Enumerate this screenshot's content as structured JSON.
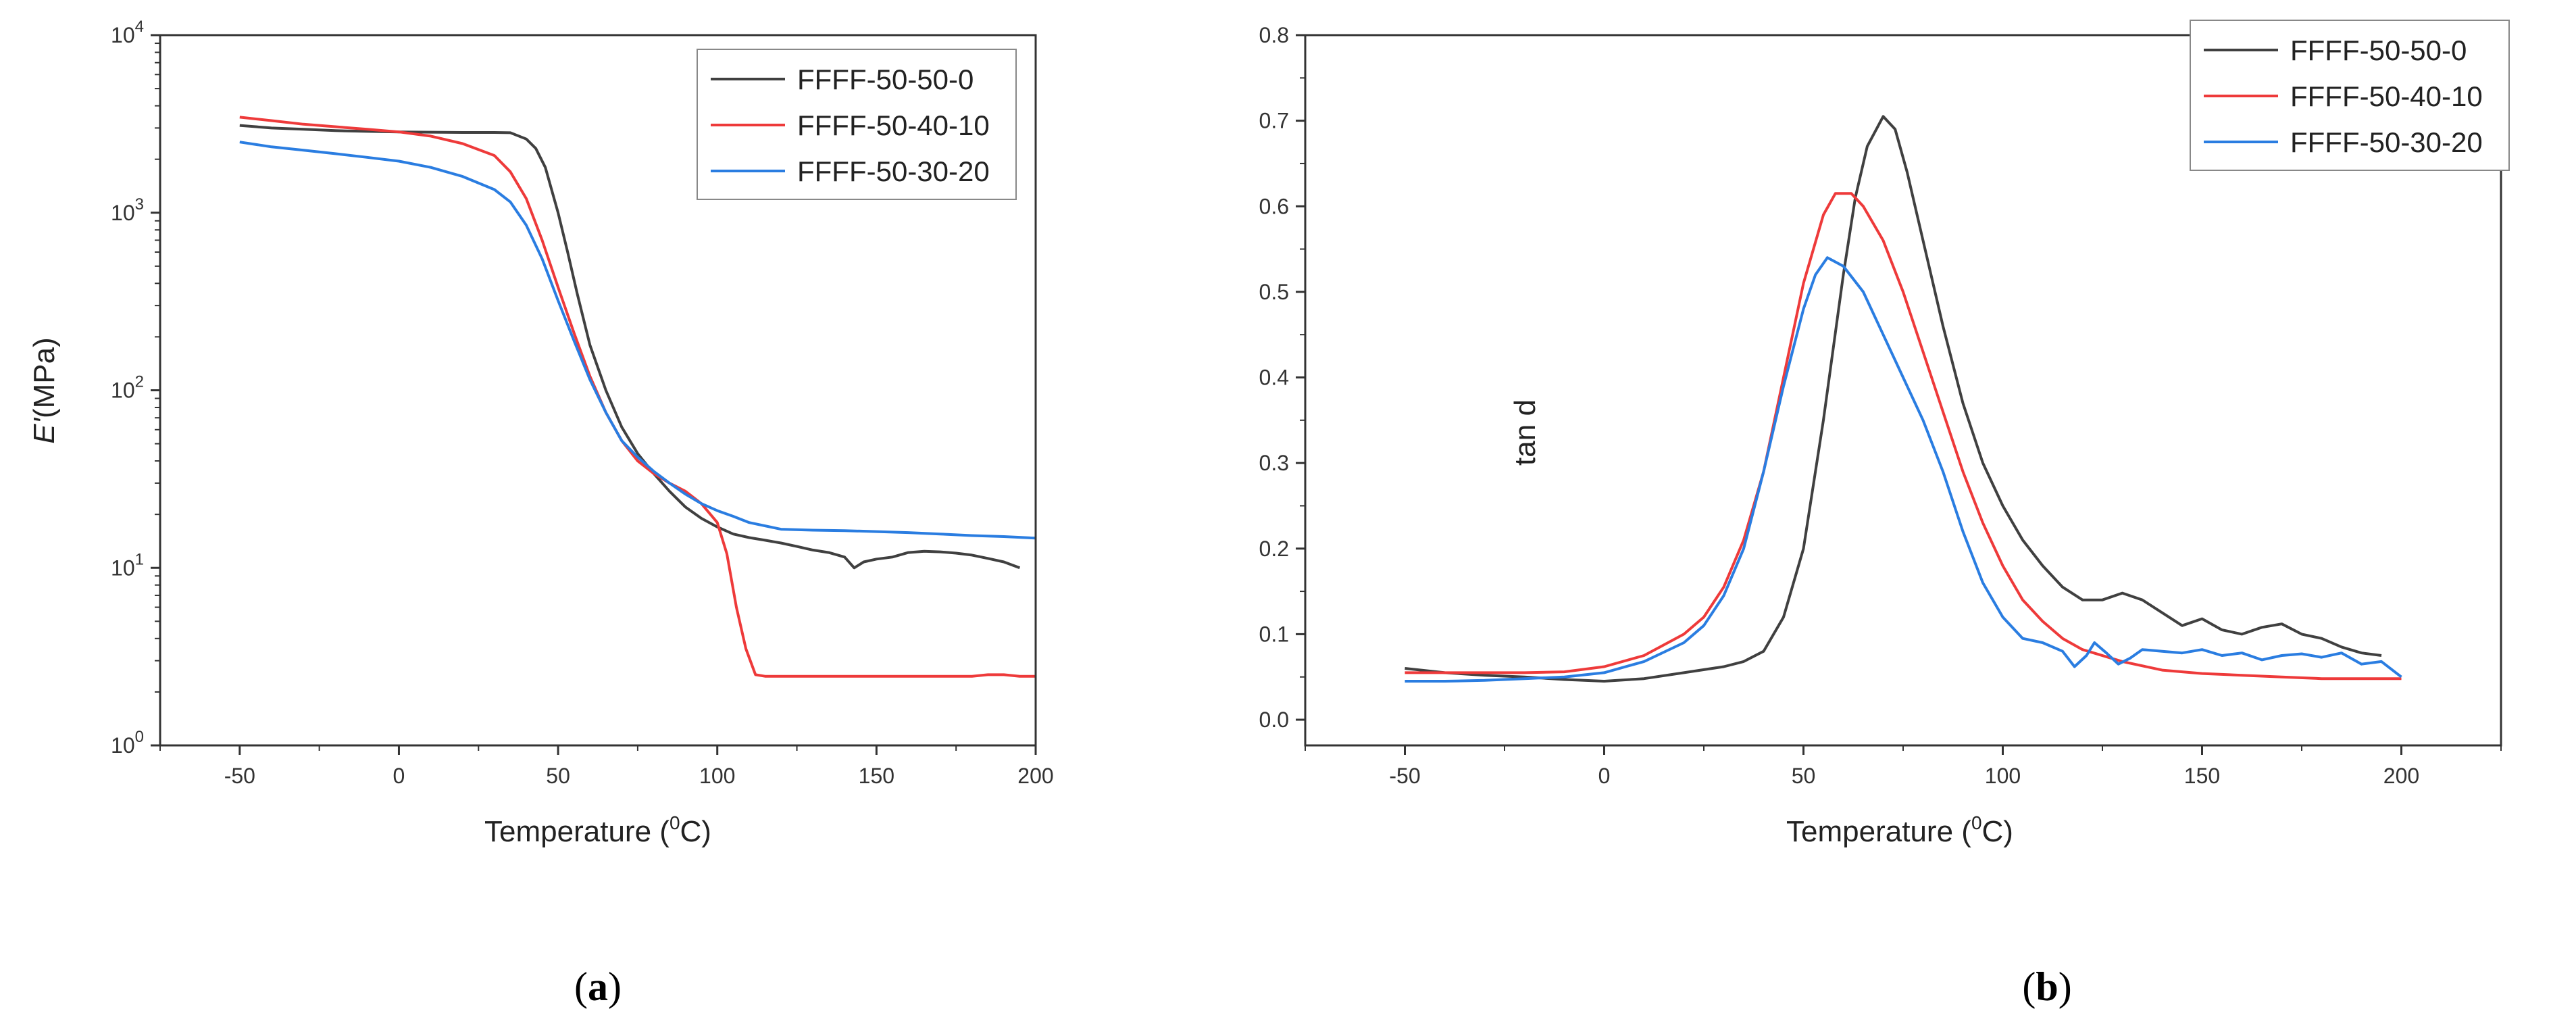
{
  "panels": [
    {
      "label_open": "(",
      "label_letter": "a",
      "label_close": ")"
    },
    {
      "label_open": "(",
      "label_letter": "b",
      "label_close": ")"
    }
  ],
  "chart_data": [
    {
      "type": "line",
      "title": "",
      "xlabel": "Temperature (0C)",
      "xlabel_parts": {
        "pre": "Temperature (",
        "sup": "0",
        "post": "C)"
      },
      "ylabel": "E'(MPa)",
      "ylabel_parts": {
        "italic": "E'",
        "rest": "(MPa)"
      },
      "yscale": "log",
      "xlim": [
        -75,
        200
      ],
      "ylim": [
        1,
        10000
      ],
      "xticks": [
        -50,
        0,
        50,
        100,
        150,
        200
      ],
      "yticks": [
        1,
        10,
        100,
        1000,
        10000
      ],
      "ytick_labels": [
        {
          "base": "10",
          "exp": "0"
        },
        {
          "base": "10",
          "exp": "1"
        },
        {
          "base": "10",
          "exp": "2"
        },
        {
          "base": "10",
          "exp": "3"
        },
        {
          "base": "10",
          "exp": "4"
        }
      ],
      "legend": "top-right",
      "grid": false,
      "series": [
        {
          "name": "FFFF-50-50-0",
          "color": "#404040",
          "x": [
            -50,
            -40,
            -30,
            -20,
            -10,
            0,
            10,
            20,
            30,
            35,
            40,
            43,
            46,
            50,
            53,
            56,
            60,
            65,
            70,
            75,
            80,
            85,
            90,
            95,
            100,
            105,
            110,
            115,
            120,
            125,
            130,
            135,
            140,
            143,
            146,
            150,
            155,
            160,
            165,
            170,
            175,
            180,
            185,
            190,
            195
          ],
          "y": [
            3100,
            3000,
            2950,
            2900,
            2870,
            2850,
            2840,
            2830,
            2830,
            2820,
            2600,
            2300,
            1800,
            1000,
            600,
            350,
            180,
            100,
            62,
            44,
            34,
            27,
            22,
            19,
            17,
            15.5,
            14.8,
            14.3,
            13.8,
            13.2,
            12.6,
            12.2,
            11.5,
            10,
            10.8,
            11.2,
            11.5,
            12.2,
            12.4,
            12.3,
            12.1,
            11.8,
            11.3,
            10.8,
            10
          ]
        },
        {
          "name": "FFFF-50-40-10",
          "color": "#ee3a3a",
          "x": [
            -50,
            -40,
            -30,
            -20,
            -10,
            0,
            10,
            20,
            30,
            35,
            40,
            45,
            50,
            55,
            60,
            65,
            70,
            75,
            80,
            85,
            90,
            95,
            100,
            103,
            106,
            109,
            112,
            115,
            120,
            130,
            140,
            150,
            160,
            170,
            180,
            185,
            190,
            195,
            200
          ],
          "y": [
            3450,
            3300,
            3150,
            3050,
            2950,
            2850,
            2700,
            2450,
            2100,
            1700,
            1200,
            700,
            380,
            210,
            120,
            75,
            52,
            40,
            34,
            30,
            27,
            23,
            18,
            12,
            6,
            3.5,
            2.5,
            2.45,
            2.45,
            2.45,
            2.45,
            2.45,
            2.45,
            2.45,
            2.45,
            2.5,
            2.5,
            2.45,
            2.45
          ]
        },
        {
          "name": "FFFF-50-30-20",
          "color": "#2a7de1",
          "x": [
            -50,
            -40,
            -30,
            -20,
            -10,
            0,
            10,
            20,
            30,
            35,
            40,
            45,
            50,
            55,
            60,
            65,
            70,
            75,
            80,
            85,
            90,
            95,
            100,
            105,
            110,
            120,
            130,
            140,
            150,
            160,
            170,
            180,
            190,
            200
          ],
          "y": [
            2500,
            2350,
            2250,
            2150,
            2050,
            1950,
            1800,
            1600,
            1350,
            1150,
            850,
            550,
            320,
            190,
            115,
            75,
            52,
            42,
            35,
            30,
            26,
            23,
            21,
            19.5,
            18,
            16.5,
            16.3,
            16.2,
            16,
            15.8,
            15.5,
            15.2,
            15,
            14.7
          ]
        }
      ]
    },
    {
      "type": "line",
      "title": "",
      "xlabel": "Temperature (0C)",
      "xlabel_parts": {
        "pre": "Temperature (",
        "sup": "0",
        "post": "C)"
      },
      "ylabel": "tan d",
      "xlim": [
        -75,
        225
      ],
      "ylim": [
        -0.03,
        0.8
      ],
      "xticks": [
        -50,
        0,
        50,
        100,
        150,
        200
      ],
      "yticks": [
        0.0,
        0.1,
        0.2,
        0.3,
        0.4,
        0.5,
        0.6,
        0.7,
        0.8
      ],
      "legend": "top-right",
      "grid": false,
      "series": [
        {
          "name": "FFFF-50-50-0",
          "color": "#404040",
          "x": [
            -50,
            -40,
            -30,
            -20,
            -10,
            0,
            10,
            20,
            30,
            35,
            40,
            45,
            50,
            55,
            60,
            63,
            66,
            70,
            73,
            76,
            80,
            85,
            90,
            95,
            100,
            105,
            110,
            115,
            120,
            125,
            130,
            135,
            140,
            145,
            150,
            155,
            160,
            165,
            170,
            175,
            180,
            185,
            190,
            195
          ],
          "y": [
            0.06,
            0.055,
            0.052,
            0.05,
            0.047,
            0.045,
            0.048,
            0.055,
            0.062,
            0.068,
            0.08,
            0.12,
            0.2,
            0.35,
            0.52,
            0.61,
            0.67,
            0.705,
            0.69,
            0.64,
            0.56,
            0.46,
            0.37,
            0.3,
            0.25,
            0.21,
            0.18,
            0.155,
            0.14,
            0.14,
            0.148,
            0.14,
            0.125,
            0.11,
            0.118,
            0.105,
            0.1,
            0.108,
            0.112,
            0.1,
            0.095,
            0.085,
            0.078,
            0.075
          ]
        },
        {
          "name": "FFFF-50-40-10",
          "color": "#ee3a3a",
          "x": [
            -50,
            -40,
            -30,
            -20,
            -10,
            0,
            10,
            20,
            25,
            30,
            35,
            40,
            45,
            50,
            55,
            58,
            62,
            65,
            70,
            75,
            80,
            85,
            90,
            95,
            100,
            105,
            110,
            115,
            120,
            130,
            140,
            150,
            160,
            170,
            180,
            190,
            200
          ],
          "y": [
            0.055,
            0.055,
            0.055,
            0.055,
            0.056,
            0.062,
            0.075,
            0.1,
            0.12,
            0.155,
            0.21,
            0.29,
            0.4,
            0.51,
            0.59,
            0.615,
            0.615,
            0.6,
            0.56,
            0.5,
            0.43,
            0.36,
            0.29,
            0.23,
            0.18,
            0.14,
            0.115,
            0.095,
            0.082,
            0.068,
            0.058,
            0.054,
            0.052,
            0.05,
            0.048,
            0.048,
            0.048
          ]
        },
        {
          "name": "FFFF-50-30-20",
          "color": "#2a7de1",
          "x": [
            -50,
            -40,
            -30,
            -20,
            -10,
            0,
            10,
            20,
            25,
            30,
            35,
            40,
            45,
            50,
            53,
            56,
            60,
            65,
            70,
            75,
            80,
            85,
            90,
            95,
            100,
            105,
            110,
            115,
            118,
            121,
            123,
            126,
            129,
            132,
            135,
            140,
            145,
            150,
            155,
            160,
            165,
            170,
            175,
            180,
            185,
            190,
            195,
            200
          ],
          "y": [
            0.045,
            0.045,
            0.046,
            0.048,
            0.05,
            0.055,
            0.068,
            0.09,
            0.11,
            0.145,
            0.2,
            0.29,
            0.39,
            0.48,
            0.52,
            0.54,
            0.53,
            0.5,
            0.45,
            0.4,
            0.35,
            0.29,
            0.22,
            0.16,
            0.12,
            0.095,
            0.09,
            0.08,
            0.062,
            0.075,
            0.09,
            0.078,
            0.065,
            0.072,
            0.082,
            0.08,
            0.078,
            0.082,
            0.075,
            0.078,
            0.07,
            0.075,
            0.077,
            0.073,
            0.078,
            0.065,
            0.068,
            0.05
          ]
        }
      ]
    }
  ]
}
